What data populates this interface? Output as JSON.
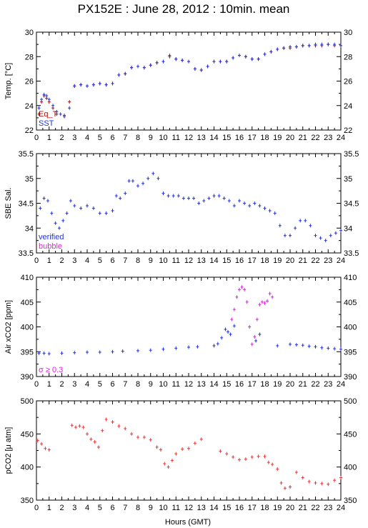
{
  "title": "PX152E : June 28, 2012 : 10min. mean",
  "xlabel": "Hours (GMT)",
  "colors": {
    "blue": "#2233dd",
    "red": "#ee3333",
    "magenta": "#dd22dd",
    "darkred": "#aa1111"
  },
  "chart_data": [
    {
      "type": "scatter",
      "ylabel": "Temp. [°C]",
      "xlim": [
        0,
        24
      ],
      "ylim": [
        22,
        30
      ],
      "xticks": [
        "0",
        "1",
        "2",
        "3",
        "4",
        "5",
        "6",
        "7",
        "8",
        "9",
        "10",
        "11",
        "12",
        "13",
        "14",
        "15",
        "16",
        "17",
        "18",
        "19",
        "20",
        "21",
        "22",
        "23",
        "24"
      ],
      "yticks": [
        "22",
        "24",
        "26",
        "28",
        "30"
      ],
      "legend": [
        {
          "label": "Eq_T",
          "color": "#aa1111"
        },
        {
          "label": "SST",
          "color": "#2233dd"
        }
      ],
      "series": [
        {
          "name": "Eq_T",
          "color": "#aa1111",
          "x": [
            0.2,
            0.4,
            0.6,
            0.8,
            1.0,
            1.3,
            1.6,
            2.2,
            2.6,
            3.0,
            3.5,
            4.0,
            4.5,
            5.0,
            5.5,
            6.0,
            6.5,
            7.0,
            7.5,
            8.0,
            8.5,
            9.0,
            9.5,
            10.0,
            10.5,
            11.0,
            11.5,
            12.0,
            12.5,
            13.0,
            13.5,
            14.0,
            14.5,
            15.0,
            15.5,
            16.0,
            16.5,
            17.0,
            17.5,
            18.0,
            18.5,
            19.0,
            19.5,
            20.0,
            20.5,
            21.0,
            21.5,
            22.0,
            22.5,
            23.0,
            23.5,
            24.0
          ],
          "y": [
            23.3,
            24.3,
            24.8,
            24.6,
            24.3,
            23.8,
            23.3,
            23.2,
            24.3,
            25.6,
            25.7,
            25.6,
            25.7,
            25.8,
            25.7,
            25.8,
            26.5,
            26.6,
            27.1,
            27.2,
            27.1,
            27.3,
            27.5,
            27.6,
            28.0,
            27.8,
            27.7,
            27.6,
            27.0,
            26.9,
            27.2,
            27.6,
            27.6,
            27.6,
            27.9,
            28.1,
            28.0,
            27.8,
            27.8,
            28.2,
            28.4,
            28.6,
            28.7,
            28.7,
            28.8,
            28.9,
            28.9,
            28.9,
            28.9,
            29.0,
            28.9,
            28.9
          ]
        },
        {
          "name": "SST",
          "color": "#2233dd",
          "x": [
            0.2,
            0.4,
            0.6,
            0.8,
            1.0,
            1.3,
            1.6,
            1.9,
            2.2,
            2.6,
            3.0,
            3.5,
            4.0,
            4.5,
            5.0,
            5.5,
            6.0,
            6.5,
            7.0,
            7.5,
            8.0,
            8.5,
            9.0,
            9.5,
            10.0,
            10.5,
            11.0,
            11.5,
            12.0,
            12.5,
            13.0,
            13.5,
            14.0,
            14.5,
            15.0,
            15.5,
            16.0,
            16.5,
            17.0,
            17.5,
            18.0,
            18.5,
            19.0,
            19.5,
            20.0,
            20.5,
            21.0,
            21.5,
            22.0,
            22.5,
            23.0,
            23.5,
            24.0
          ],
          "y": [
            23.8,
            24.5,
            24.9,
            24.8,
            24.5,
            24.0,
            23.5,
            23.3,
            23.1,
            23.8,
            25.6,
            25.7,
            25.6,
            25.7,
            25.8,
            25.7,
            25.8,
            26.5,
            26.6,
            27.1,
            27.2,
            27.1,
            27.3,
            27.5,
            27.6,
            28.1,
            27.8,
            27.7,
            27.6,
            27.0,
            26.9,
            27.2,
            27.6,
            27.6,
            27.6,
            27.9,
            28.1,
            28.0,
            27.8,
            27.8,
            28.2,
            28.4,
            28.6,
            28.7,
            28.8,
            28.8,
            28.9,
            28.9,
            29.0,
            29.0,
            29.0,
            29.0,
            28.9
          ]
        }
      ]
    },
    {
      "type": "scatter",
      "ylabel": "SBE Sal.",
      "xlim": [
        0,
        24
      ],
      "ylim": [
        33.5,
        35.5
      ],
      "xticks": [
        "0",
        "1",
        "2",
        "3",
        "4",
        "5",
        "6",
        "7",
        "8",
        "9",
        "10",
        "11",
        "12",
        "13",
        "14",
        "15",
        "16",
        "17",
        "18",
        "19",
        "20",
        "21",
        "22",
        "23",
        "24"
      ],
      "yticks": [
        "33.5",
        "34",
        "34.5",
        "35",
        "35.5"
      ],
      "legend": [
        {
          "label": "verified",
          "color": "#2233dd"
        },
        {
          "label": "bubble",
          "color": "#dd22dd"
        }
      ],
      "series": [
        {
          "name": "verified",
          "color": "#2233dd",
          "x": [
            0.3,
            0.6,
            0.9,
            1.2,
            1.5,
            1.8,
            2.1,
            2.4,
            2.7,
            3.0,
            3.5,
            4.0,
            4.5,
            5.0,
            5.5,
            6.0,
            6.3,
            6.6,
            7.0,
            7.3,
            7.6,
            8.0,
            8.4,
            8.8,
            9.2,
            9.6,
            10.0,
            10.4,
            10.8,
            11.2,
            11.6,
            12.0,
            12.4,
            12.8,
            13.2,
            13.6,
            14.0,
            14.4,
            14.8,
            15.2,
            15.6,
            16.0,
            16.4,
            16.8,
            17.2,
            17.6,
            18.0,
            18.4,
            18.8,
            19.2,
            19.6,
            20.0,
            20.4,
            20.8,
            21.2,
            21.6,
            22.0,
            22.4,
            22.8,
            23.2,
            23.6,
            24.0
          ],
          "y": [
            34.4,
            34.6,
            34.55,
            34.3,
            34.1,
            34.0,
            34.15,
            34.3,
            34.55,
            34.45,
            34.4,
            34.45,
            34.4,
            34.3,
            34.3,
            34.35,
            34.65,
            34.6,
            34.7,
            34.95,
            34.95,
            34.85,
            34.9,
            35.0,
            35.1,
            35.0,
            34.7,
            34.65,
            34.65,
            34.65,
            34.6,
            34.6,
            34.6,
            34.5,
            34.55,
            34.6,
            34.65,
            34.65,
            34.6,
            34.55,
            34.45,
            34.55,
            34.5,
            34.45,
            34.5,
            34.45,
            34.4,
            34.35,
            34.3,
            34.05,
            33.85,
            33.85,
            34.0,
            34.15,
            34.15,
            34.05,
            33.85,
            33.8,
            33.75,
            33.85,
            33.9,
            33.95
          ]
        }
      ]
    },
    {
      "type": "scatter",
      "ylabel": "Air xCO2 [ppm]",
      "xlim": [
        0,
        24
      ],
      "ylim": [
        390,
        410
      ],
      "xticks": [
        "0",
        "1",
        "2",
        "3",
        "4",
        "5",
        "6",
        "7",
        "8",
        "9",
        "10",
        "11",
        "12",
        "13",
        "14",
        "15",
        "16",
        "17",
        "18",
        "19",
        "20",
        "21",
        "22",
        "23",
        "24"
      ],
      "yticks": [
        "390",
        "395",
        "400",
        "405",
        "410"
      ],
      "legend": [
        {
          "label": "σ ≥ 0.3",
          "color": "#dd22dd"
        }
      ],
      "series": [
        {
          "name": "",
          "color": "#2233dd",
          "x": [
            0.2,
            0.6,
            1.0,
            2.0,
            3.0,
            4.0,
            5.0,
            6.0,
            6.8,
            8.0,
            9.0,
            10.0,
            11.0,
            12.0,
            12.7,
            14.0,
            14.3,
            14.6,
            14.9,
            15.1,
            15.3,
            15.6,
            17.3,
            17.6,
            19.0,
            20.0,
            20.5,
            21.0,
            21.5,
            22.0,
            22.5,
            23.0,
            23.5,
            24.0
          ],
          "y": [
            394.7,
            394.7,
            394.6,
            394.7,
            394.8,
            394.9,
            394.9,
            395.0,
            395.1,
            395.2,
            395.3,
            395.5,
            395.7,
            395.9,
            396.0,
            396.2,
            396.6,
            397.8,
            399.5,
            399.0,
            398.5,
            400.2,
            397.2,
            398.5,
            396.2,
            396.5,
            396.4,
            396.3,
            396.1,
            396.0,
            395.8,
            395.7,
            395.6,
            395.5
          ]
        },
        {
          "name": "",
          "color": "#dd22dd",
          "x": [
            15.4,
            15.6,
            15.8,
            16.0,
            16.2,
            16.4,
            16.6,
            16.8,
            17.0,
            17.2,
            17.4,
            17.6,
            17.8,
            18.0,
            18.2,
            18.4,
            18.6
          ],
          "y": [
            401.5,
            403.5,
            406.0,
            407.5,
            408.0,
            407.5,
            405.0,
            400.0,
            396.5,
            398.0,
            401.5,
            404.5,
            405.0,
            404.8,
            405.2,
            406.7,
            406.0
          ]
        }
      ]
    },
    {
      "type": "scatter",
      "ylabel": "pCO2 [μ atm]",
      "xlim": [
        0,
        24
      ],
      "ylim": [
        350,
        500
      ],
      "xticks": [
        "0",
        "1",
        "2",
        "3",
        "4",
        "5",
        "6",
        "7",
        "8",
        "9",
        "10",
        "11",
        "12",
        "13",
        "14",
        "15",
        "16",
        "17",
        "18",
        "19",
        "20",
        "21",
        "22",
        "23",
        "24"
      ],
      "yticks": [
        "350",
        "400",
        "450",
        "500"
      ],
      "series": [
        {
          "name": "",
          "color": "#ee3333",
          "x": [
            0.1,
            0.4,
            0.7,
            1.0,
            2.8,
            3.1,
            3.4,
            3.7,
            4.0,
            4.3,
            4.6,
            4.9,
            5.2,
            5.5,
            6.0,
            6.5,
            7.0,
            7.5,
            8.0,
            8.5,
            9.0,
            9.5,
            9.8,
            10.1,
            10.4,
            10.7,
            11.0,
            11.5,
            12.0,
            12.5,
            13.0,
            14.5,
            15.0,
            15.5,
            16.0,
            16.5,
            17.0,
            17.5,
            18.0,
            18.3,
            18.6,
            19.0,
            19.3,
            19.6,
            20.0,
            20.5,
            21.0,
            21.5,
            22.0,
            22.5,
            23.0,
            23.5,
            24.0
          ],
          "y": [
            440,
            435,
            428,
            426,
            463,
            460,
            462,
            460,
            450,
            442,
            438,
            430,
            455,
            472,
            468,
            462,
            458,
            450,
            445,
            445,
            441,
            430,
            426,
            405,
            400,
            410,
            420,
            427,
            428,
            436,
            442,
            424,
            420,
            415,
            411,
            412,
            415,
            416,
            416,
            407,
            404,
            397,
            376,
            368,
            370,
            392,
            384,
            378,
            376,
            375,
            374,
            380,
            384
          ]
        }
      ]
    }
  ]
}
